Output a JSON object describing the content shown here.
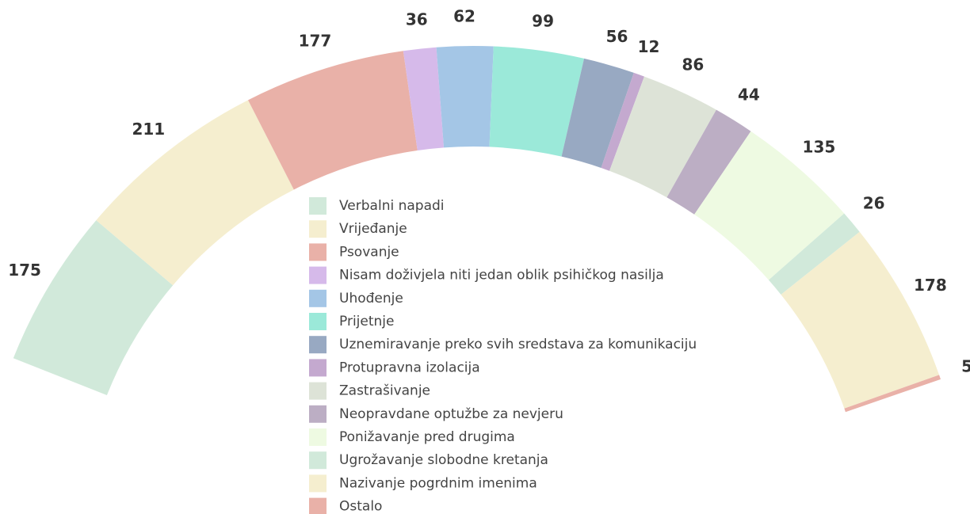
{
  "chart_data": {
    "type": "pie",
    "categories": [
      "Verbalni napadi",
      "Vrijeđanje",
      "Psovanje",
      "Nisam doživjela niti jedan oblik psihičkog nasilja",
      "Uhođenje",
      "Prijetnje",
      "Uznemiravanje preko svih sredstava za komunikaciju",
      "Protupravna izolacija",
      "Zastrašivanje",
      "Neopravdane optužbe za nevjeru",
      "Ponižavanje pred drugima",
      "Ugrožavanje slobodne kretanja",
      "Nazivanje pogrdnim imenima",
      "Ostalo"
    ],
    "values": [
      175,
      211,
      177,
      36,
      62,
      99,
      56,
      12,
      86,
      44,
      135,
      26,
      178,
      5
    ],
    "colors": [
      "#d1e9da",
      "#f5eecf",
      "#e9b1a8",
      "#d6baea",
      "#a4c6e6",
      "#9be9d9",
      "#98a9c2",
      "#c4a9cf",
      "#dde3d7",
      "#bcaec4",
      "#eefae2",
      "#d1e9da",
      "#f5eecf",
      "#e9b1a8"
    ],
    "legend": "center"
  }
}
